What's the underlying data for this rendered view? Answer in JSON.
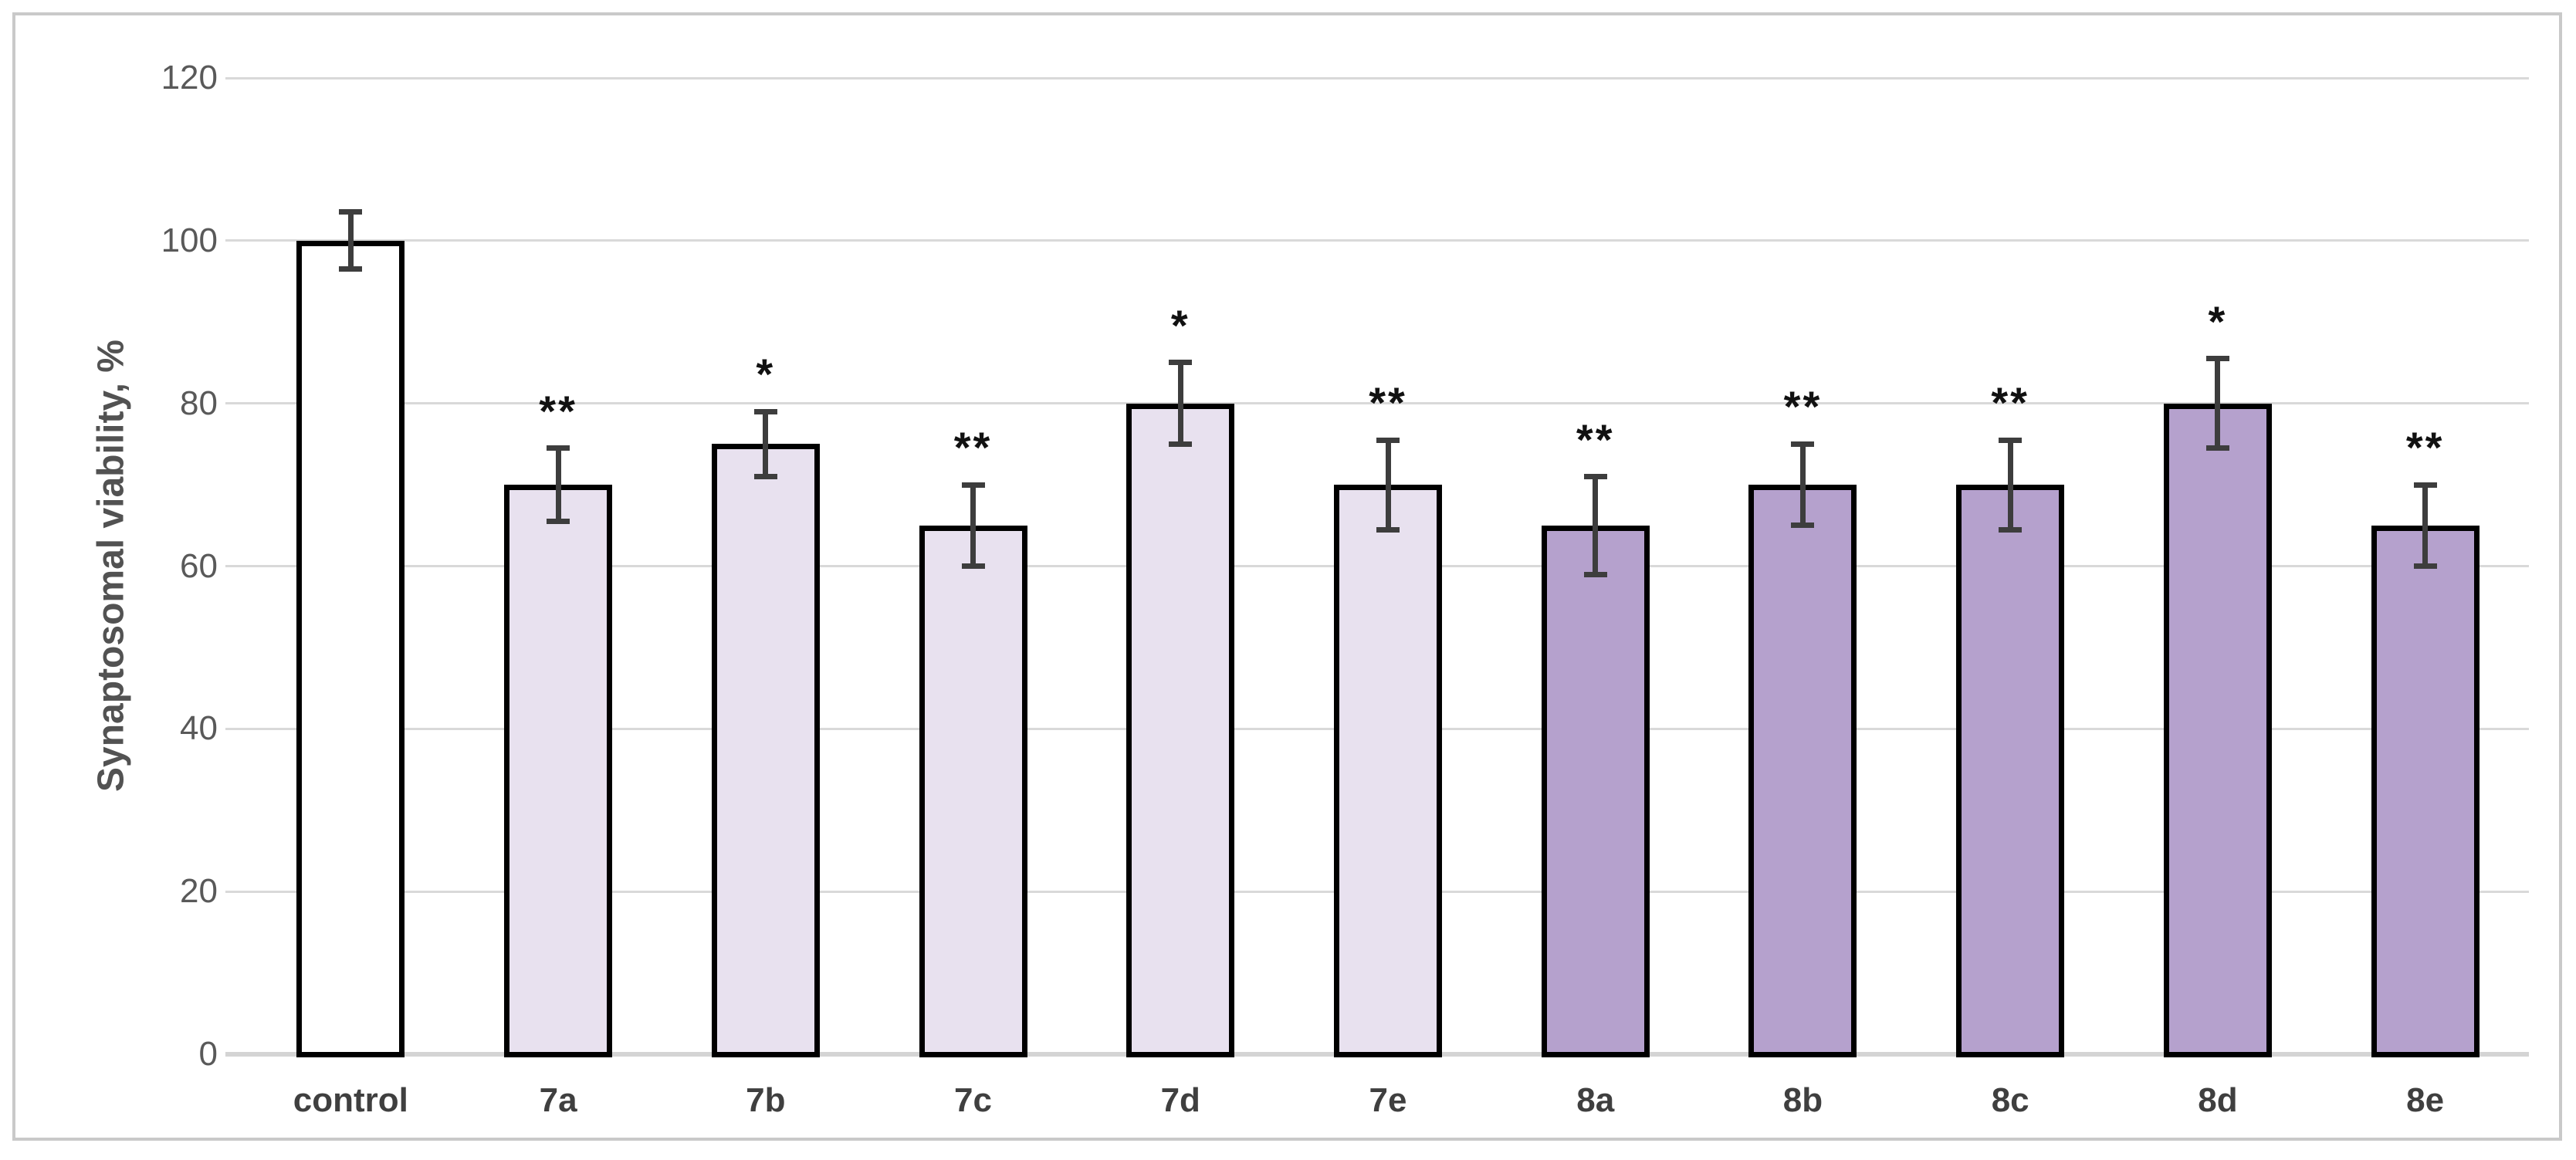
{
  "figure": {
    "background_color": "#ffffff",
    "frame_border_color": "#c9c9c9"
  },
  "chart_data": {
    "type": "bar",
    "title": "",
    "xlabel": "",
    "ylabel": "Synaptosomal viability, %",
    "ylim": [
      0,
      120
    ],
    "yticks": [
      0,
      20,
      40,
      60,
      80,
      100,
      120
    ],
    "grid": "horizontal gridlines on",
    "legend": "none",
    "categories": [
      "control",
      "7a",
      "7b",
      "7c",
      "7d",
      "7e",
      "8a",
      "8b",
      "8c",
      "8d",
      "8e"
    ],
    "values": [
      100,
      70,
      75,
      65,
      80,
      70,
      65,
      70,
      70,
      80,
      65
    ],
    "errors": [
      3.5,
      4.5,
      4,
      5,
      5,
      5.5,
      6,
      5,
      5.5,
      5.5,
      5
    ],
    "significance": [
      "",
      "**",
      "*",
      "**",
      "*",
      "**",
      "**",
      "**",
      "**",
      "*",
      "**"
    ],
    "bar_fills": [
      "#ffffff",
      "#e8e1ef",
      "#e8e1ef",
      "#e8e1ef",
      "#e8e1ef",
      "#e8e1ef",
      "#b5a1cd",
      "#b5a1cd",
      "#b5a1cd",
      "#b5a1cd",
      "#b5a1cd"
    ],
    "series_colors": {
      "control": "#ffffff",
      "series_7": "#e8e1ef",
      "series_8": "#b5a1cd"
    },
    "bar_border_color": "#000000",
    "error_bar_color": "#3d3d3d",
    "gridline_color": "#d9d9d9",
    "axis_line_color": "#d4d4d4",
    "ytick_label_color": "#595959",
    "category_label_color": "#3f3f3f",
    "ylabel_color": "#525252",
    "significance_color": "#111111"
  }
}
